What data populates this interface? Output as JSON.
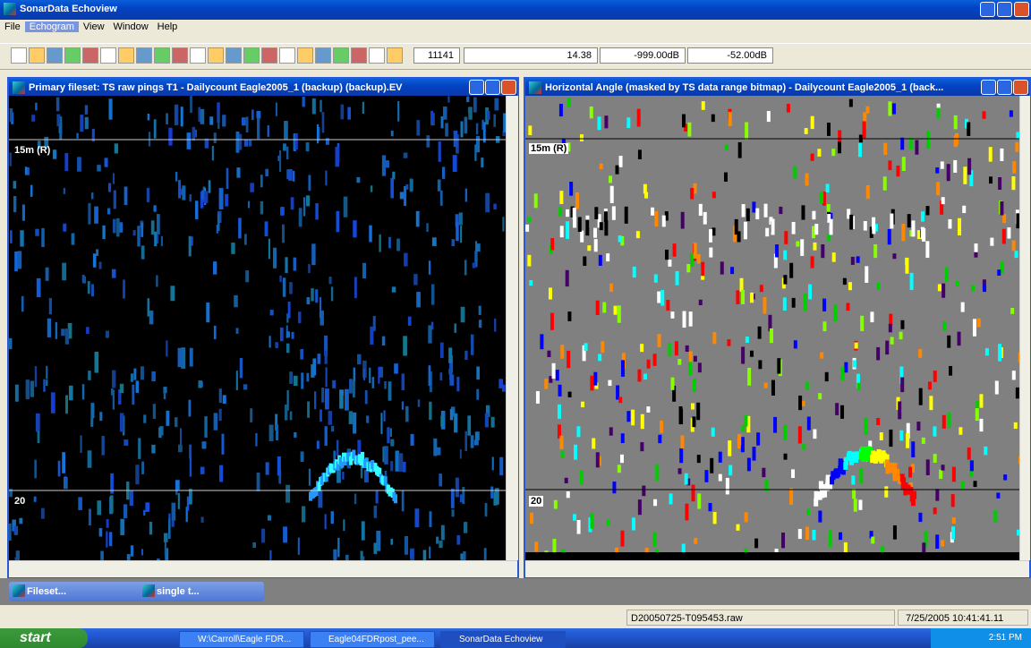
{
  "app_title": "SonarData Echoview",
  "menu": [
    "File",
    "Echogram",
    "View",
    "Window",
    "Help"
  ],
  "toolbar_fields": [
    "11141",
    "14.38",
    "-999.00dB",
    "-52.00dB"
  ],
  "windows": [
    {
      "title": "Primary fileset: TS raw pings T1 - Dailycount Eagle2005_1 (backup) (backup).EV",
      "depth_labels": [
        "15m (R)",
        "20"
      ]
    },
    {
      "title": "Horizontal Angle (masked by TS data range bitmap) - Dailycount Eagle2005_1 (back...",
      "depth_labels": [
        "15m (R)",
        "20"
      ]
    }
  ],
  "minimized": [
    "Fileset...",
    "single t..."
  ],
  "status": [
    "D20050725-T095453.raw",
    "7/25/2005 10:41:41.11"
  ],
  "taskbar": {
    "start": "start",
    "items": [
      "W:\\Carroll\\Eagle FDR...",
      "Eagle04FDRpost_pee...",
      "SonarData Echoview"
    ],
    "clock": "2:51 PM"
  }
}
